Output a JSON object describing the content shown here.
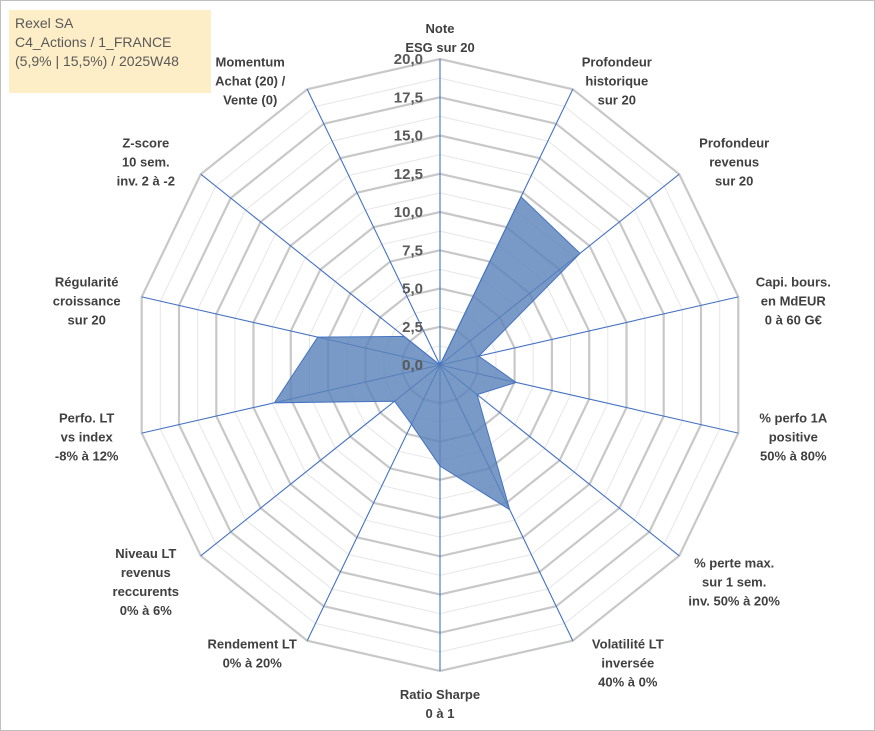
{
  "header": {
    "line1": "Rexel SA",
    "line2": "C4_Actions / 1_FRANCE",
    "line3": "(5,9% | 15,5%) / 2025W48"
  },
  "chart_data": {
    "type": "radar",
    "rmin": 0,
    "rmax": 20,
    "tick_step": 2.5,
    "tick_labels": [
      "0,0",
      "2,5",
      "5,0",
      "7,5",
      "10,0",
      "12,5",
      "15,0",
      "17,5",
      "20,0"
    ],
    "minor_ring_step": 1.25,
    "grid": true,
    "fill_color": "#5b84b9",
    "line_color": "#4472c4",
    "ring_color": "#c8c8c8",
    "categories": [
      [
        "Note",
        "ESG sur 20"
      ],
      [
        "Profondeur",
        "historique",
        "sur 20"
      ],
      [
        "Profondeur",
        "revenus",
        "sur 20"
      ],
      [
        "Capi. bours.",
        "en MdEUR",
        "0 à 60 G€"
      ],
      [
        "% perfo 1A",
        "positive",
        "50% à 80%"
      ],
      [
        "% perte max.",
        "sur 1 sem.",
        "inv. 50% à 20%"
      ],
      [
        "Volatilité LT",
        "inversée",
        "40% à 0%"
      ],
      [
        "Ratio Sharpe",
        "0 à 1"
      ],
      [
        "Rendement LT",
        "0% à 20%"
      ],
      [
        "Niveau LT",
        "revenus",
        "reccurents",
        "0% à 6%"
      ],
      [
        "Perfo. LT",
        "vs index",
        "-8% à 12%"
      ],
      [
        "Régularité",
        "croissance",
        "sur 20"
      ],
      [
        "Z-score",
        "10 sem.",
        "inv. 2 à -2"
      ],
      [
        "Momentum",
        "Achat (20) /",
        "Vente (0)"
      ]
    ],
    "values": [
      0,
      12.2,
      11.7,
      2.6,
      5.1,
      3.1,
      10.5,
      6.6,
      4.3,
      3.8,
      11.1,
      8.2,
      3.0,
      0
    ]
  }
}
